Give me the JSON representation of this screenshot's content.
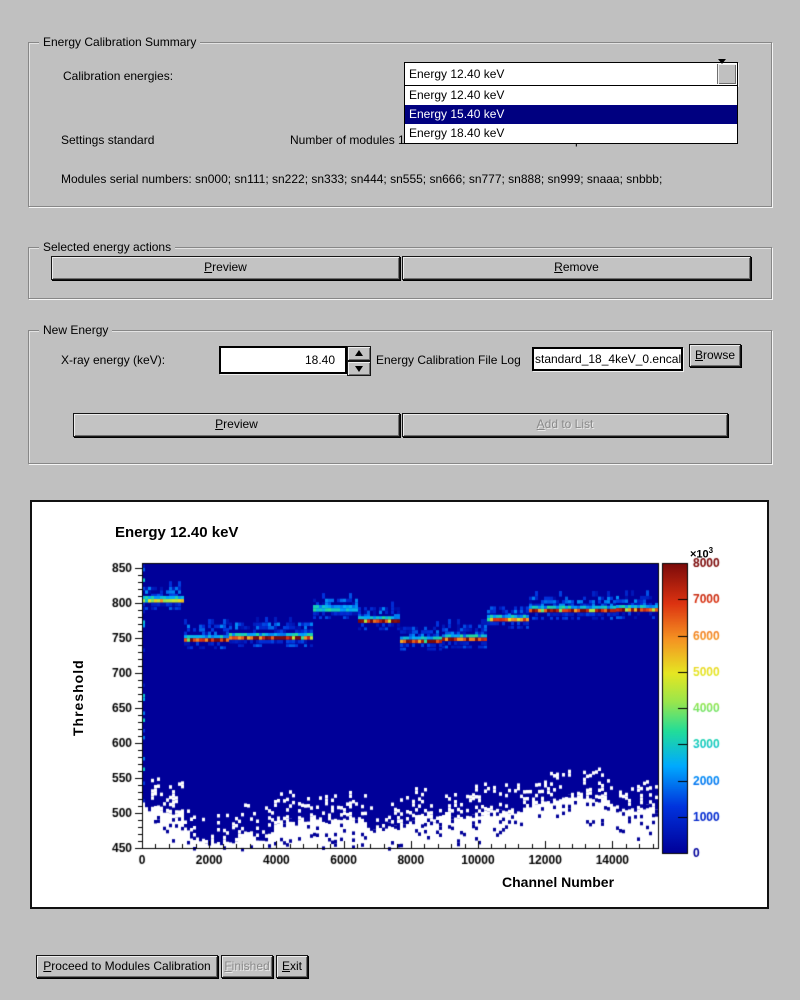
{
  "summary_group": {
    "title": "Energy Calibration Summary",
    "energies_label": "Calibration energies:",
    "combo_value": "Energy 12.40 keV",
    "options": [
      "Energy 12.40 keV",
      "Energy 15.40 keV",
      "Energy 18.40 keV"
    ],
    "selected_option_index": 1,
    "settings": "Settings standard",
    "modules_count": "Number of modules 12",
    "channels_per_module": "Channels per module 1280",
    "serials": "Modules serial numbers: sn000; sn111; sn222; sn333; sn444; sn555; sn666; sn777; sn888; sn999; snaaa; snbbb;"
  },
  "actions_group": {
    "title": "Selected energy actions",
    "preview": "Preview",
    "remove": "Remove"
  },
  "new_energy": {
    "title": "New Energy",
    "xray_label": "X-ray energy (keV):",
    "energy_value": "18.40",
    "file_label": "Energy Calibration File Log",
    "file_value": "standard_18_4keV_0.encal",
    "browse": "Browse",
    "preview": "Preview",
    "add": "Add to List"
  },
  "footer": {
    "proceed": "Proceed to Modules Calibration",
    "finished": "Finished",
    "exit": "Exit"
  },
  "colors": {
    "highlight": "#000080",
    "window_bg": "#c0c0c0"
  },
  "chart_data": {
    "type": "heatmap",
    "title": "Energy 12.40 keV",
    "xlabel": "Channel Number",
    "ylabel": "Threshold",
    "xlim": [
      0,
      15360
    ],
    "ylim": [
      450,
      857
    ],
    "zlim": [
      0,
      8000
    ],
    "xticks": [
      0,
      2000,
      4000,
      6000,
      8000,
      10000,
      12000,
      14000
    ],
    "yticks": [
      450,
      500,
      550,
      600,
      650,
      700,
      750,
      800,
      850
    ],
    "zticks": [
      0,
      1000,
      2000,
      3000,
      4000,
      5000,
      6000,
      7000,
      8000
    ],
    "x_minor_step": 400,
    "y_minor_step": 10,
    "z_exp_base": "×10",
    "z_exp_pow": "3",
    "background_value_color": "#000099",
    "empty_color": "#ffffff",
    "palette": [
      [
        0.0,
        "#000099"
      ],
      [
        0.16,
        "#0033dd"
      ],
      [
        0.3,
        "#00aaff"
      ],
      [
        0.42,
        "#22dd99"
      ],
      [
        0.52,
        "#99e64d"
      ],
      [
        0.62,
        "#e6e622"
      ],
      [
        0.74,
        "#f59122"
      ],
      [
        0.86,
        "#dd3311"
      ],
      [
        1.0,
        "#7a0a0a"
      ]
    ],
    "channels_per_module": 1280,
    "modules": [
      {
        "ch": [
          0,
          1280
        ],
        "center": 803,
        "peak": 5200,
        "band_width": 14,
        "floor": 505
      },
      {
        "ch": [
          1280,
          2560
        ],
        "center": 747,
        "peak": 7900,
        "band_width": 16,
        "floor": 462
      },
      {
        "ch": [
          2560,
          3840
        ],
        "center": 750,
        "peak": 7600,
        "band_width": 16,
        "floor": 470
      },
      {
        "ch": [
          3840,
          5120
        ],
        "center": 750,
        "peak": 7900,
        "band_width": 16,
        "floor": 488
      },
      {
        "ch": [
          5120,
          6400
        ],
        "center": 790,
        "peak": 3000,
        "band_width": 10,
        "floor": 495
      },
      {
        "ch": [
          6400,
          7680
        ],
        "center": 774,
        "peak": 7500,
        "band_width": 14,
        "floor": 483
      },
      {
        "ch": [
          7680,
          8960
        ],
        "center": 745,
        "peak": 7800,
        "band_width": 15,
        "floor": 492
      },
      {
        "ch": [
          8960,
          10240
        ],
        "center": 748,
        "peak": 7800,
        "band_width": 15,
        "floor": 497
      },
      {
        "ch": [
          10240,
          11520
        ],
        "center": 776,
        "peak": 6500,
        "band_width": 13,
        "floor": 505
      },
      {
        "ch": [
          11520,
          12800
        ],
        "center": 789,
        "peak": 7800,
        "band_width": 14,
        "floor": 516
      },
      {
        "ch": [
          12800,
          14080
        ],
        "center": 789,
        "peak": 7800,
        "band_width": 14,
        "floor": 520
      },
      {
        "ch": [
          14080,
          15360
        ],
        "center": 790,
        "peak": 7600,
        "band_width": 14,
        "floor": 510
      }
    ],
    "noise": {
      "seed": 1234567,
      "jitter": 16
    }
  }
}
